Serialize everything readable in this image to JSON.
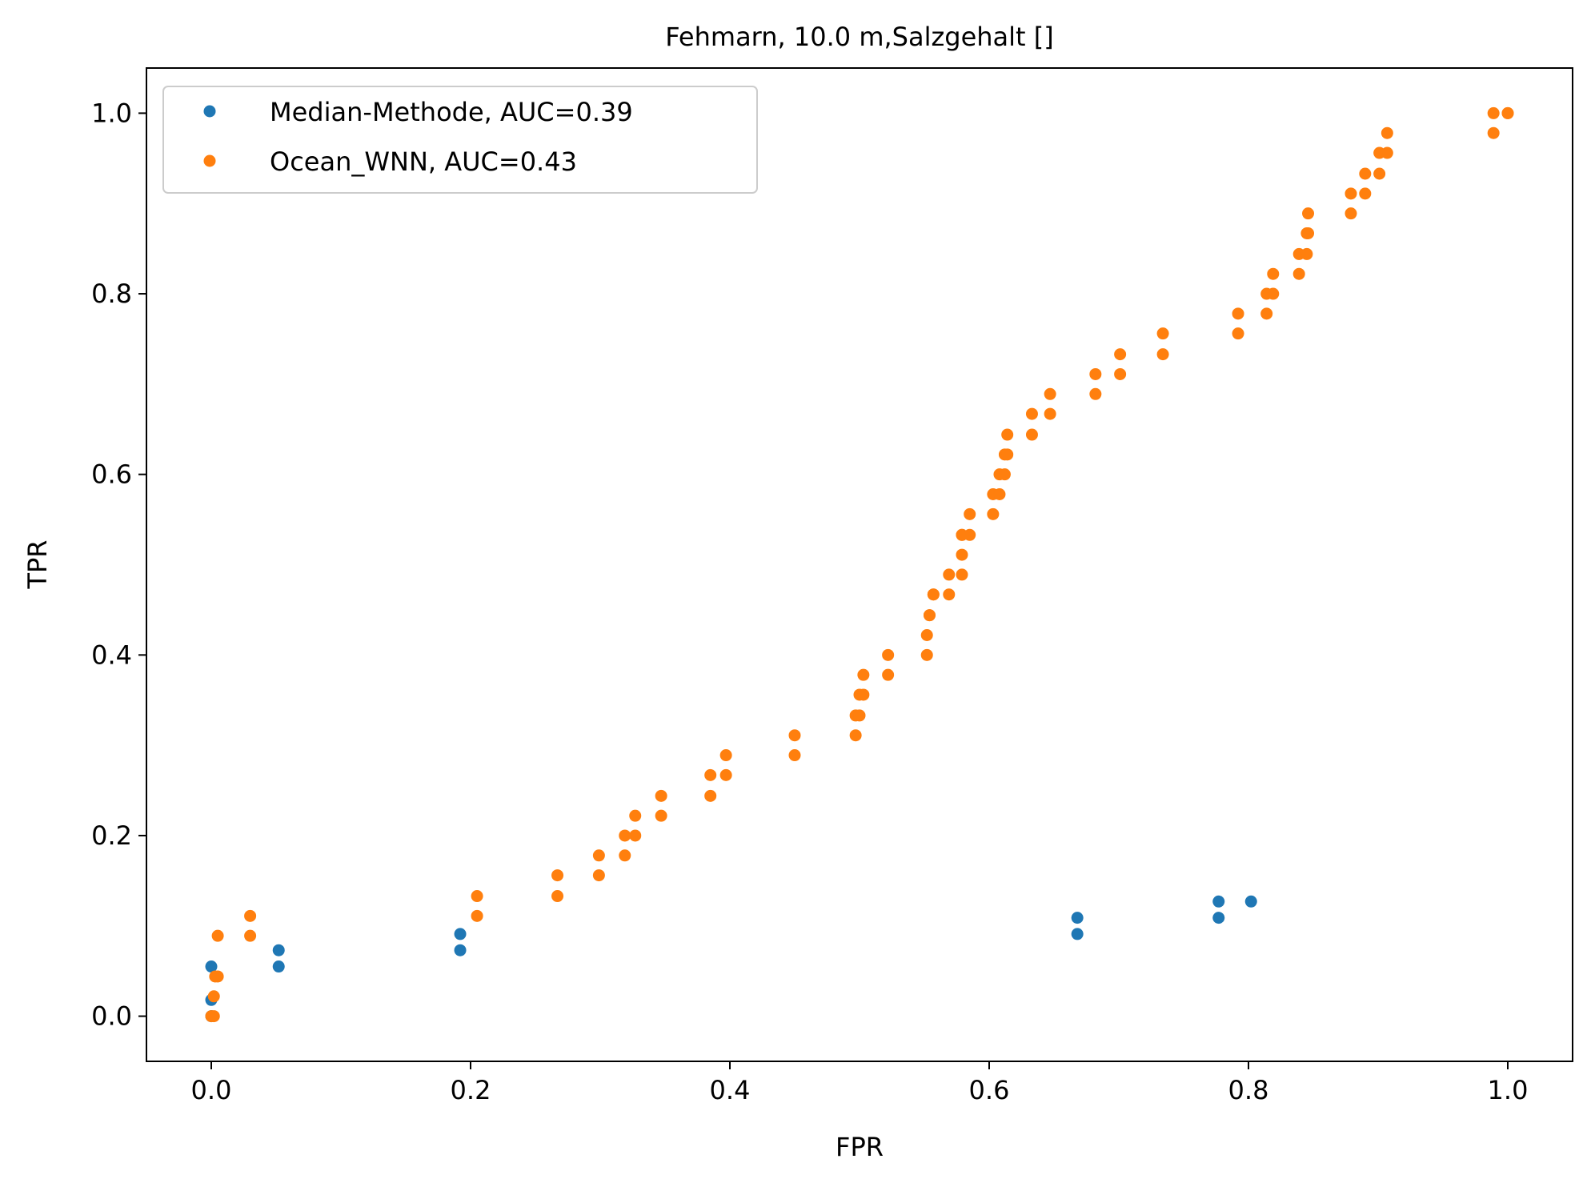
{
  "chart_data": {
    "type": "scatter",
    "title": "Fehmarn, 10.0 m,Salzgehalt []",
    "xlabel": "FPR",
    "ylabel": "TPR",
    "xlim": [
      -0.05,
      1.05
    ],
    "ylim": [
      -0.05,
      1.05
    ],
    "x_ticks": [
      0.0,
      0.2,
      0.4,
      0.6,
      0.8,
      1.0
    ],
    "x_tick_labels": [
      "0.0",
      "0.2",
      "0.4",
      "0.6",
      "0.8",
      "1.0"
    ],
    "y_ticks": [
      0.0,
      0.2,
      0.4,
      0.6,
      0.8,
      1.0
    ],
    "y_tick_labels": [
      "0.0",
      "0.2",
      "0.4",
      "0.6",
      "0.8",
      "1.0"
    ],
    "grid": false,
    "legend_position": "upper-left",
    "series": [
      {
        "name": "Median-Methode, AUC=0.39",
        "color": "#1f77b4",
        "x": [
          0.0,
          0.0,
          0.0,
          0.052,
          0.052,
          0.192,
          0.192,
          0.668,
          0.668,
          0.777,
          0.777,
          0.802
        ],
        "y": [
          0.0,
          0.018,
          0.055,
          0.055,
          0.073,
          0.073,
          0.091,
          0.091,
          0.109,
          0.109,
          0.127,
          0.127
        ]
      },
      {
        "name": "Ocean_WNN, AUC=0.43",
        "color": "#ff7f0e",
        "x": [
          0.0,
          0.002,
          0.002,
          0.003,
          0.005,
          0.005,
          0.03,
          0.03,
          0.205,
          0.205,
          0.267,
          0.267,
          0.299,
          0.299,
          0.319,
          0.319,
          0.327,
          0.327,
          0.347,
          0.347,
          0.385,
          0.385,
          0.397,
          0.397,
          0.45,
          0.45,
          0.497,
          0.497,
          0.5,
          0.5,
          0.503,
          0.503,
          0.522,
          0.522,
          0.552,
          0.552,
          0.554,
          0.554,
          0.557,
          0.557,
          0.569,
          0.569,
          0.579,
          0.579,
          0.579,
          0.579,
          0.585,
          0.585,
          0.603,
          0.603,
          0.608,
          0.608,
          0.612,
          0.612,
          0.614,
          0.614,
          0.633,
          0.633,
          0.647,
          0.647,
          0.682,
          0.682,
          0.701,
          0.701,
          0.734,
          0.734,
          0.792,
          0.792,
          0.814,
          0.814,
          0.819,
          0.819,
          0.839,
          0.839,
          0.845,
          0.845,
          0.846,
          0.846,
          0.879,
          0.879,
          0.89,
          0.89,
          0.901,
          0.901,
          0.907,
          0.907,
          0.989,
          0.989,
          1.0,
          1.0
        ],
        "y": [
          0.0,
          0.0,
          0.022,
          0.044,
          0.044,
          0.089,
          0.089,
          0.111,
          0.111,
          0.133,
          0.133,
          0.156,
          0.156,
          0.178,
          0.178,
          0.2,
          0.2,
          0.222,
          0.222,
          0.244,
          0.244,
          0.267,
          0.267,
          0.289,
          0.289,
          0.311,
          0.311,
          0.333,
          0.333,
          0.356,
          0.356,
          0.378,
          0.378,
          0.4,
          0.4,
          0.422,
          0.444,
          0.444,
          0.467,
          0.467,
          0.467,
          0.489,
          0.489,
          0.511,
          0.533,
          0.533,
          0.533,
          0.556,
          0.556,
          0.578,
          0.578,
          0.6,
          0.6,
          0.622,
          0.622,
          0.644,
          0.644,
          0.667,
          0.667,
          0.689,
          0.689,
          0.711,
          0.711,
          0.733,
          0.733,
          0.756,
          0.756,
          0.778,
          0.778,
          0.8,
          0.8,
          0.822,
          0.822,
          0.844,
          0.844,
          0.867,
          0.867,
          0.889,
          0.889,
          0.911,
          0.911,
          0.933,
          0.933,
          0.956,
          0.956,
          0.978,
          0.978,
          1.0,
          1.0,
          1.0
        ]
      }
    ]
  }
}
